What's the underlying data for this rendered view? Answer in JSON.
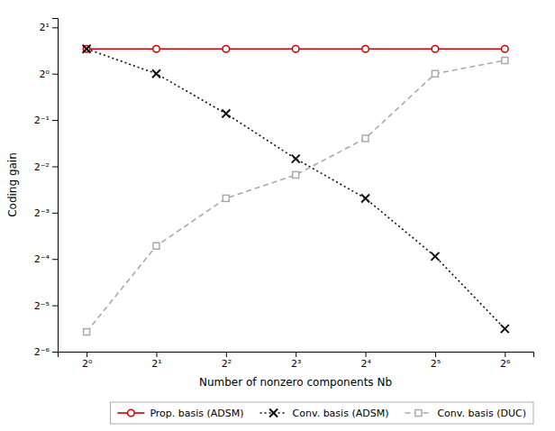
{
  "chart_data": {
    "type": "line",
    "xlabel": "Number of nonzero components Nb",
    "ylabel": "Coding gain",
    "x": [
      1,
      2,
      4,
      8,
      16,
      32,
      64
    ],
    "xlim": [
      0.75,
      85
    ],
    "ylim": [
      0.015625,
      2.3
    ],
    "xticks": [
      {
        "value": 1,
        "label": "2⁰"
      },
      {
        "value": 2,
        "label": "2¹"
      },
      {
        "value": 4,
        "label": "2²"
      },
      {
        "value": 8,
        "label": "2³"
      },
      {
        "value": 16,
        "label": "2⁴"
      },
      {
        "value": 32,
        "label": "2⁵"
      },
      {
        "value": 64,
        "label": "2⁶"
      }
    ],
    "yticks": [
      {
        "value": 0.015625,
        "label": "2⁻⁶"
      },
      {
        "value": 0.03125,
        "label": "2⁻⁵"
      },
      {
        "value": 0.0625,
        "label": "2⁻⁴"
      },
      {
        "value": 0.125,
        "label": "2⁻³"
      },
      {
        "value": 0.25,
        "label": "2⁻²"
      },
      {
        "value": 0.5,
        "label": "2⁻¹"
      },
      {
        "value": 1,
        "label": "2⁰"
      },
      {
        "value": 2,
        "label": "2¹"
      }
    ],
    "log": true,
    "grid": false,
    "legend": "lower right",
    "series": [
      {
        "name": "Prop. basis (ADSM)",
        "color": "#cc0000",
        "marker": "circle",
        "line_style": "solid",
        "values": [
          1.45,
          1.45,
          1.45,
          1.45,
          1.45,
          1.45,
          1.45
        ]
      },
      {
        "name": "Conv. basis (ADSM)",
        "color": "#111111",
        "marker": "x",
        "line_style": "dotted",
        "values": [
          1.45,
          1.0,
          0.55,
          0.28,
          0.155,
          0.065,
          0.022
        ]
      },
      {
        "name": "Conv. basis (DUC)",
        "color": "#aaaaaa",
        "marker": "square",
        "line_style": "dashed",
        "values": [
          0.021,
          0.076,
          0.155,
          0.22,
          0.38,
          1.0,
          1.22
        ]
      }
    ]
  }
}
